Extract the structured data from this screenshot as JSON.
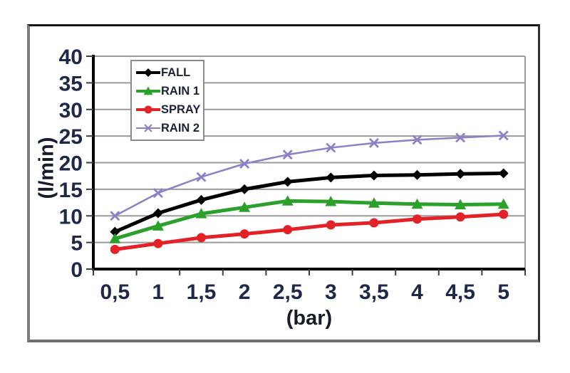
{
  "chart_data": {
    "type": "line",
    "title": "",
    "xlabel": "(bar)",
    "ylabel": "(l/min)",
    "x": [
      0.5,
      1,
      1.5,
      2,
      2.5,
      3,
      3.5,
      4,
      4.5,
      5
    ],
    "x_tick_labels": [
      "0,5",
      "1",
      "1,5",
      "2",
      "2,5",
      "3",
      "3,5",
      "4",
      "4,5",
      "5"
    ],
    "ylim": [
      0,
      40
    ],
    "y_ticks": [
      0,
      5,
      10,
      15,
      20,
      25,
      30,
      35,
      40
    ],
    "y_tick_labels": [
      "0",
      "5",
      "10",
      "15",
      "20",
      "25",
      "30",
      "35",
      "40"
    ],
    "grid": "horizontal",
    "legend_position": "upper-left-inside",
    "series": [
      {
        "name": "FALL",
        "color": "#000000",
        "marker": "diamond",
        "values": [
          7.0,
          10.5,
          13.0,
          15.0,
          16.4,
          17.2,
          17.6,
          17.7,
          17.9,
          18.0
        ]
      },
      {
        "name": "RAIN 1",
        "color": "#2ba02b",
        "marker": "triangle",
        "values": [
          5.7,
          8.1,
          10.4,
          11.6,
          12.8,
          12.7,
          12.4,
          12.2,
          12.1,
          12.2
        ]
      },
      {
        "name": "SPRAY",
        "color": "#e32228",
        "marker": "circle",
        "values": [
          3.7,
          4.8,
          5.9,
          6.6,
          7.4,
          8.3,
          8.7,
          9.4,
          9.8,
          10.3
        ]
      },
      {
        "name": "RAIN 2",
        "color": "#8f80c6",
        "marker": "x",
        "values": [
          10.0,
          14.3,
          17.3,
          19.8,
          21.5,
          22.8,
          23.7,
          24.3,
          24.7,
          25.1
        ]
      }
    ]
  },
  "colors": {
    "grid": "#9a9a9a",
    "axis": "#000000",
    "tick_mark": "#3f3f3f",
    "tick_label": "#20284a",
    "axis_title": "#171c2b",
    "legend_text": "#1c2237",
    "legend_border": "#8a8a8a"
  }
}
